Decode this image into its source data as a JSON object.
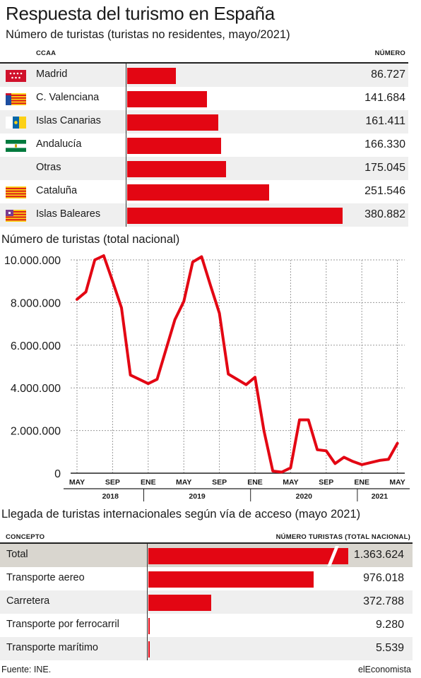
{
  "header": {
    "title": "Respuesta del turismo en España"
  },
  "section1": {
    "subtitle": "Número de turistas (turistas no residentes, mayo/2021)",
    "col_label": "CCAA",
    "col_value": "NÚMERO"
  },
  "section2": {
    "subtitle": "Número de turistas (total nacional)"
  },
  "section3": {
    "subtitle": "Llegada de turistas internacionales según vía de acceso (mayo 2021)",
    "col_label": "CONCEPTO",
    "col_value": "NÚMERO TURISTAS (TOTAL NACIONAL)"
  },
  "footer": {
    "source": "Fuente: INE.",
    "brand": "elEconomista"
  },
  "chart_data": [
    {
      "type": "bar",
      "orientation": "horizontal",
      "categories": [
        "Madrid",
        "C. Valenciana",
        "Islas Canarias",
        "Andalucía",
        "Otras",
        "Cataluña",
        "Islas Baleares"
      ],
      "values": [
        86727,
        141684,
        161411,
        166330,
        175045,
        251546,
        380882
      ],
      "value_labels": [
        "86.727",
        "141.684",
        "161.411",
        "166.330",
        "175.045",
        "251.546",
        "380.882"
      ],
      "flags": [
        "madrid-flag-icon",
        "valencia-flag-icon",
        "canarias-flag-icon",
        "andalucia-flag-icon",
        "",
        "cataluna-flag-icon",
        "baleares-flag-icon"
      ],
      "color": "#e30613"
    },
    {
      "type": "line",
      "x": [
        "2018-05",
        "2018-06",
        "2018-07",
        "2018-08",
        "2018-09",
        "2018-10",
        "2018-11",
        "2018-12",
        "2019-01",
        "2019-02",
        "2019-03",
        "2019-04",
        "2019-05",
        "2019-06",
        "2019-07",
        "2019-08",
        "2019-09",
        "2019-10",
        "2019-11",
        "2019-12",
        "2020-01",
        "2020-02",
        "2020-03",
        "2020-04",
        "2020-05",
        "2020-06",
        "2020-07",
        "2020-08",
        "2020-09",
        "2020-10",
        "2020-11",
        "2020-12",
        "2021-01",
        "2021-02",
        "2021-03",
        "2021-04",
        "2021-05"
      ],
      "y": [
        8150000,
        8500000,
        10000000,
        10200000,
        9000000,
        7750000,
        4600000,
        4400000,
        4200000,
        4400000,
        5800000,
        7200000,
        8050000,
        9900000,
        10150000,
        8800000,
        7500000,
        4650000,
        4400000,
        4150000,
        4500000,
        2000000,
        100000,
        50000,
        250000,
        2500000,
        2500000,
        1100000,
        1050000,
        450000,
        750000,
        550000,
        400000,
        500000,
        600000,
        650000,
        1400000
      ],
      "ylim": [
        0,
        10000000
      ],
      "yticks": [
        "10.000.000",
        "8.000.000",
        "6.000.000",
        "4.000.000",
        "2.000.000",
        "0"
      ],
      "xticks": [
        "MAY",
        "SEP",
        "ENE",
        "MAY",
        "SEP",
        "ENE",
        "MAY",
        "SEP",
        "ENE",
        "MAY"
      ],
      "years": [
        "2018",
        "2019",
        "2020",
        "2021"
      ],
      "grid": true,
      "color": "#e30613"
    },
    {
      "type": "bar",
      "orientation": "horizontal",
      "categories": [
        "Total",
        "Transporte aereo",
        "Carretera",
        "Transporte por ferrocarril",
        "Transporte marítimo"
      ],
      "values": [
        1363624,
        976018,
        372788,
        9280,
        5539
      ],
      "value_labels": [
        "1.363.624",
        "976.018",
        "372.788",
        "9.280",
        "5.539"
      ],
      "broken_first_bar": true,
      "color": "#e30613"
    }
  ]
}
